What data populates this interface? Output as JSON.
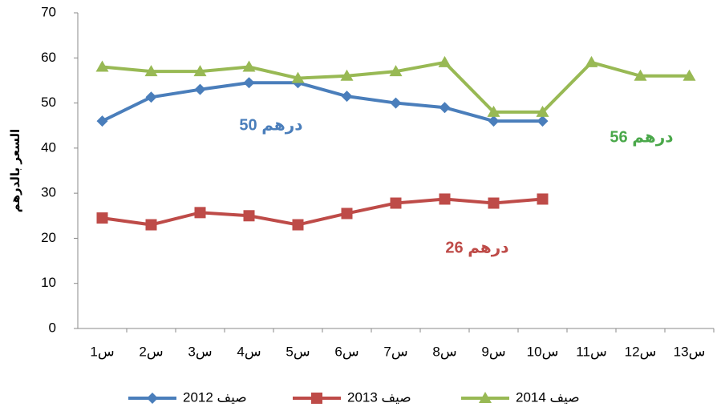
{
  "chart_data": {
    "type": "line",
    "y_label": "السعر بالدرهم",
    "categories": [
      "س1",
      "س2",
      "س3",
      "س4",
      "س5",
      "س6",
      "س7",
      "س8",
      "س9",
      "س10",
      "س11",
      "س12",
      "س13"
    ],
    "series": [
      {
        "name": "صيف 2012",
        "color": "#4a7ebb",
        "marker": "diamond",
        "values": [
          46,
          51.3,
          53,
          54.5,
          54.5,
          51.5,
          50,
          49,
          46,
          46,
          null,
          null,
          null
        ]
      },
      {
        "name": "صيف 2013",
        "color": "#be4b48",
        "marker": "square",
        "values": [
          24.5,
          23,
          25.7,
          25,
          23,
          25.5,
          27.8,
          28.7,
          27.8,
          28.7,
          null,
          null,
          null
        ]
      },
      {
        "name": "صيف 2014",
        "color": "#98b954",
        "marker": "triangle",
        "values": [
          58,
          57,
          57,
          58,
          55.5,
          56,
          57,
          59,
          48,
          48,
          59,
          56,
          56
        ]
      }
    ],
    "annotations": [
      {
        "text": "50 درهم",
        "color": "#4a7ebb"
      },
      {
        "text": "26 درهم",
        "color": "#be4b48"
      },
      {
        "text": "56 درهم",
        "color": "#4aa84a"
      }
    ],
    "ylim": [
      0,
      70
    ],
    "yticks": [
      0,
      10,
      20,
      30,
      40,
      50,
      60,
      70
    ],
    "grid": false
  }
}
